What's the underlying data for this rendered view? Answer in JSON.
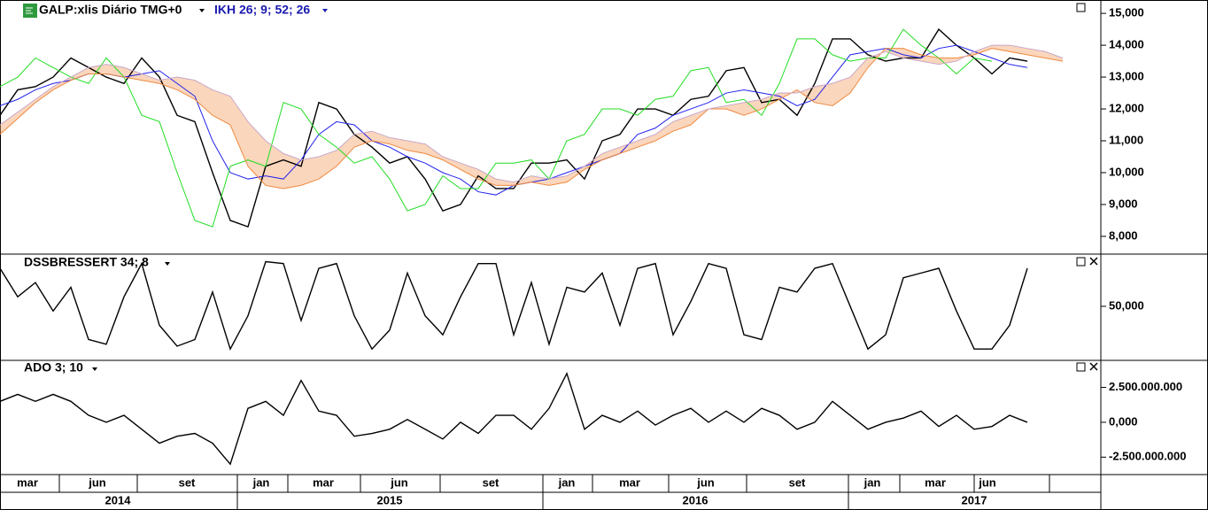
{
  "chart_data": [
    {
      "type": "line",
      "title": "GALP:xlis Diário TMG+0",
      "subtitle": "IKH 26; 9; 52; 26",
      "ylim": [
        7.47,
        15.42
      ],
      "yticks": [
        {
          "value": 8,
          "label": "8,000"
        },
        {
          "value": 9,
          "label": "9,000"
        },
        {
          "value": 10,
          "label": "10,000"
        },
        {
          "value": 11,
          "label": "11,000"
        },
        {
          "value": 12,
          "label": "12,000"
        },
        {
          "value": 13,
          "label": "13,000"
        },
        {
          "value": 14,
          "label": "14,000"
        },
        {
          "value": 15,
          "label": "15,000"
        }
      ],
      "cloud_color": "#f4a46a",
      "series": [
        {
          "color": "#000000",
          "values": [
            11.8,
            12.6,
            12.7,
            13.0,
            13.6,
            13.3,
            13.0,
            12.8,
            13.6,
            13.0,
            11.8,
            11.6,
            10.0,
            8.5,
            8.3,
            10.2,
            10.4,
            10.2,
            12.2,
            12.0,
            11.2,
            10.8,
            10.3,
            10.5,
            9.8,
            8.8,
            9.0,
            9.9,
            9.5,
            9.5,
            10.3,
            10.3,
            10.4,
            9.8,
            11.0,
            11.2,
            12.0,
            12.0,
            11.8,
            12.3,
            12.4,
            13.2,
            13.3,
            12.2,
            12.3,
            11.8,
            12.8,
            14.2,
            14.2,
            13.7,
            13.5,
            13.6,
            13.6,
            14.5,
            14.0,
            13.6,
            13.1,
            13.6,
            13.5,
            null,
            null
          ]
        },
        {
          "color": "#2222ee",
          "values": [
            12.1,
            12.3,
            12.6,
            12.8,
            12.9,
            13.1,
            13.1,
            13.0,
            13.1,
            13.2,
            12.8,
            12.4,
            11.0,
            10.0,
            9.8,
            9.9,
            9.8,
            10.4,
            11.2,
            11.6,
            11.5,
            11.0,
            10.8,
            10.5,
            10.3,
            10.0,
            9.8,
            9.4,
            9.3,
            9.6,
            9.7,
            9.8,
            10.0,
            10.2,
            10.4,
            10.6,
            11.2,
            11.4,
            11.8,
            12.0,
            12.2,
            12.5,
            12.6,
            12.5,
            12.4,
            12.1,
            12.3,
            13.0,
            13.7,
            13.8,
            13.9,
            13.7,
            13.6,
            13.9,
            14.0,
            13.8,
            13.6,
            13.4,
            13.3,
            null,
            null
          ]
        },
        {
          "color": "#22dd22",
          "values": [
            12.7,
            13.0,
            13.6,
            13.3,
            13.0,
            12.8,
            13.6,
            13.0,
            11.8,
            11.6,
            10.0,
            8.5,
            8.3,
            10.2,
            10.4,
            10.2,
            12.2,
            12.0,
            11.2,
            10.8,
            10.3,
            10.5,
            9.8,
            8.8,
            9.0,
            9.9,
            9.5,
            9.5,
            10.3,
            10.3,
            10.4,
            9.8,
            11.0,
            11.2,
            12.0,
            12.0,
            11.8,
            12.3,
            12.4,
            13.2,
            13.3,
            12.2,
            12.3,
            11.8,
            12.8,
            14.2,
            14.2,
            13.7,
            13.5,
            13.6,
            13.6,
            14.5,
            14.0,
            13.6,
            13.1,
            13.6,
            13.5,
            null,
            null,
            null,
            null
          ]
        },
        {
          "color": "#f08a40",
          "values": [
            11.2,
            11.7,
            12.2,
            12.6,
            12.9,
            13.1,
            13.1,
            13.0,
            12.9,
            12.8,
            12.6,
            12.3,
            11.8,
            11.5,
            10.2,
            9.6,
            9.5,
            9.6,
            9.8,
            10.2,
            10.8,
            11.0,
            10.9,
            10.7,
            10.6,
            10.4,
            10.1,
            9.8,
            9.6,
            9.6,
            9.7,
            9.6,
            9.7,
            10.1,
            10.4,
            10.6,
            10.8,
            11.0,
            11.3,
            11.5,
            12.0,
            12.0,
            11.8,
            12.0,
            12.3,
            12.6,
            12.2,
            12.1,
            12.5,
            13.3,
            13.9,
            13.9,
            13.7,
            13.6,
            13.6,
            13.7,
            13.9,
            13.8,
            13.7,
            13.6,
            13.5
          ]
        },
        {
          "color": "#c9a8c9",
          "values": [
            11.5,
            11.9,
            12.3,
            12.7,
            13.0,
            13.3,
            13.4,
            13.3,
            13.1,
            12.9,
            13.0,
            12.9,
            12.6,
            12.4,
            11.6,
            11.0,
            10.6,
            10.4,
            10.5,
            10.7,
            11.2,
            11.3,
            11.1,
            11.0,
            10.9,
            10.5,
            10.3,
            10.1,
            9.8,
            9.7,
            9.9,
            9.8,
            9.9,
            10.2,
            10.6,
            10.8,
            11.0,
            11.2,
            11.6,
            11.8,
            12.0,
            12.1,
            12.2,
            12.3,
            12.5,
            12.5,
            12.7,
            12.8,
            13.0,
            13.6,
            13.8,
            13.6,
            13.5,
            13.4,
            13.5,
            13.8,
            14.0,
            14.0,
            13.9,
            13.8,
            13.6
          ]
        }
      ]
    },
    {
      "type": "line",
      "title": "DSSBRESSERT 34; 8",
      "ylim": [
        -6,
        104
      ],
      "yticks": [
        {
          "value": 50,
          "label": "50,000"
        }
      ],
      "series": [
        {
          "color": "#000000",
          "values": [
            90,
            60,
            75,
            45,
            70,
            15,
            10,
            60,
            95,
            30,
            8,
            15,
            65,
            5,
            40,
            97,
            95,
            35,
            90,
            95,
            40,
            5,
            25,
            85,
            40,
            20,
            60,
            95,
            95,
            20,
            75,
            10,
            70,
            65,
            85,
            30,
            90,
            95,
            20,
            55,
            95,
            90,
            20,
            15,
            70,
            65,
            90,
            95,
            50,
            5,
            20,
            80,
            85,
            90,
            45,
            5,
            5,
            30,
            90,
            null,
            null
          ]
        }
      ]
    },
    {
      "type": "line",
      "title": "ADO 3; 10",
      "ylim": [
        -3750000000,
        4375000000
      ],
      "yticks": [
        {
          "value": 2500000000,
          "label": "2.500.000.000"
        },
        {
          "value": 0,
          "label": "0,000"
        },
        {
          "value": -2500000000,
          "label": "-2.500.000.000"
        }
      ],
      "series": [
        {
          "color": "#000000",
          "values": [
            1500000000,
            2000000000,
            1500000000,
            2000000000,
            1500000000,
            500000000,
            0,
            500000000,
            -500000000,
            -1500000000,
            -1000000000,
            -800000000,
            -1500000000,
            -3000000000,
            1000000000,
            1500000000,
            500000000,
            3000000000,
            800000000,
            500000000,
            -1000000000,
            -800000000,
            -500000000,
            200000000,
            -500000000,
            -1200000000,
            0,
            -800000000,
            500000000,
            500000000,
            -500000000,
            1000000000,
            3500000000,
            -500000000,
            500000000,
            0,
            800000000,
            -200000000,
            500000000,
            1000000000,
            0,
            800000000,
            0,
            1000000000,
            500000000,
            -500000000,
            0,
            1500000000,
            500000000,
            -500000000,
            0,
            300000000,
            800000000,
            -300000000,
            500000000,
            -500000000,
            -300000000,
            500000000,
            0,
            null,
            null
          ]
        }
      ]
    }
  ],
  "time_axis": {
    "months": [
      "mar",
      "jun",
      "set",
      "jan",
      "mar",
      "jun",
      "set",
      "jan",
      "mar",
      "jun",
      "set",
      "jan",
      "mar",
      "jun"
    ],
    "years": [
      "2014",
      "2015",
      "2016",
      "2017"
    ]
  }
}
